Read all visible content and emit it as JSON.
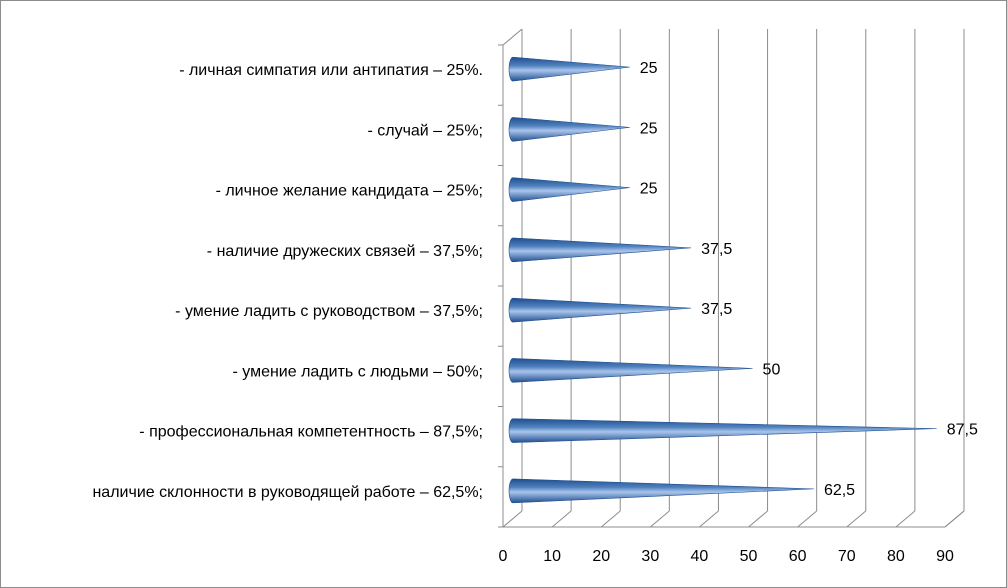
{
  "chart_data": {
    "type": "bar",
    "orientation": "horizontal",
    "style": "3d-cone",
    "categories": [
      "наличие склонности в руководящей работе – 62,5%;",
      "- профессиональная компетентность – 87,5%;",
      "- умение ладить с людьми – 50%;",
      "- умение ладить с руководством – 37,5%;",
      "- наличие дружеских связей – 37,5%;",
      "- личное желание кандидата – 25%;",
      "- случай – 25%;",
      "- личная симпатия или антипатия – 25%."
    ],
    "values": [
      62.5,
      87.5,
      50,
      37.5,
      37.5,
      25,
      25,
      25
    ],
    "data_labels": [
      "62,5",
      "87,5",
      "50",
      "37,5",
      "37,5",
      "25",
      "25",
      "25"
    ],
    "x_ticks": [
      "0",
      "10",
      "20",
      "30",
      "40",
      "50",
      "60",
      "70",
      "80",
      "90"
    ],
    "xlim": [
      0,
      90
    ],
    "grid": true,
    "legend": "none",
    "colors": {
      "bar_dark": "#1f4e8f",
      "bar_mid": "#4f81bd",
      "bar_light": "#a9c4ec",
      "gridline": "#8c8c8c",
      "frame": "#8c8c8c"
    }
  }
}
